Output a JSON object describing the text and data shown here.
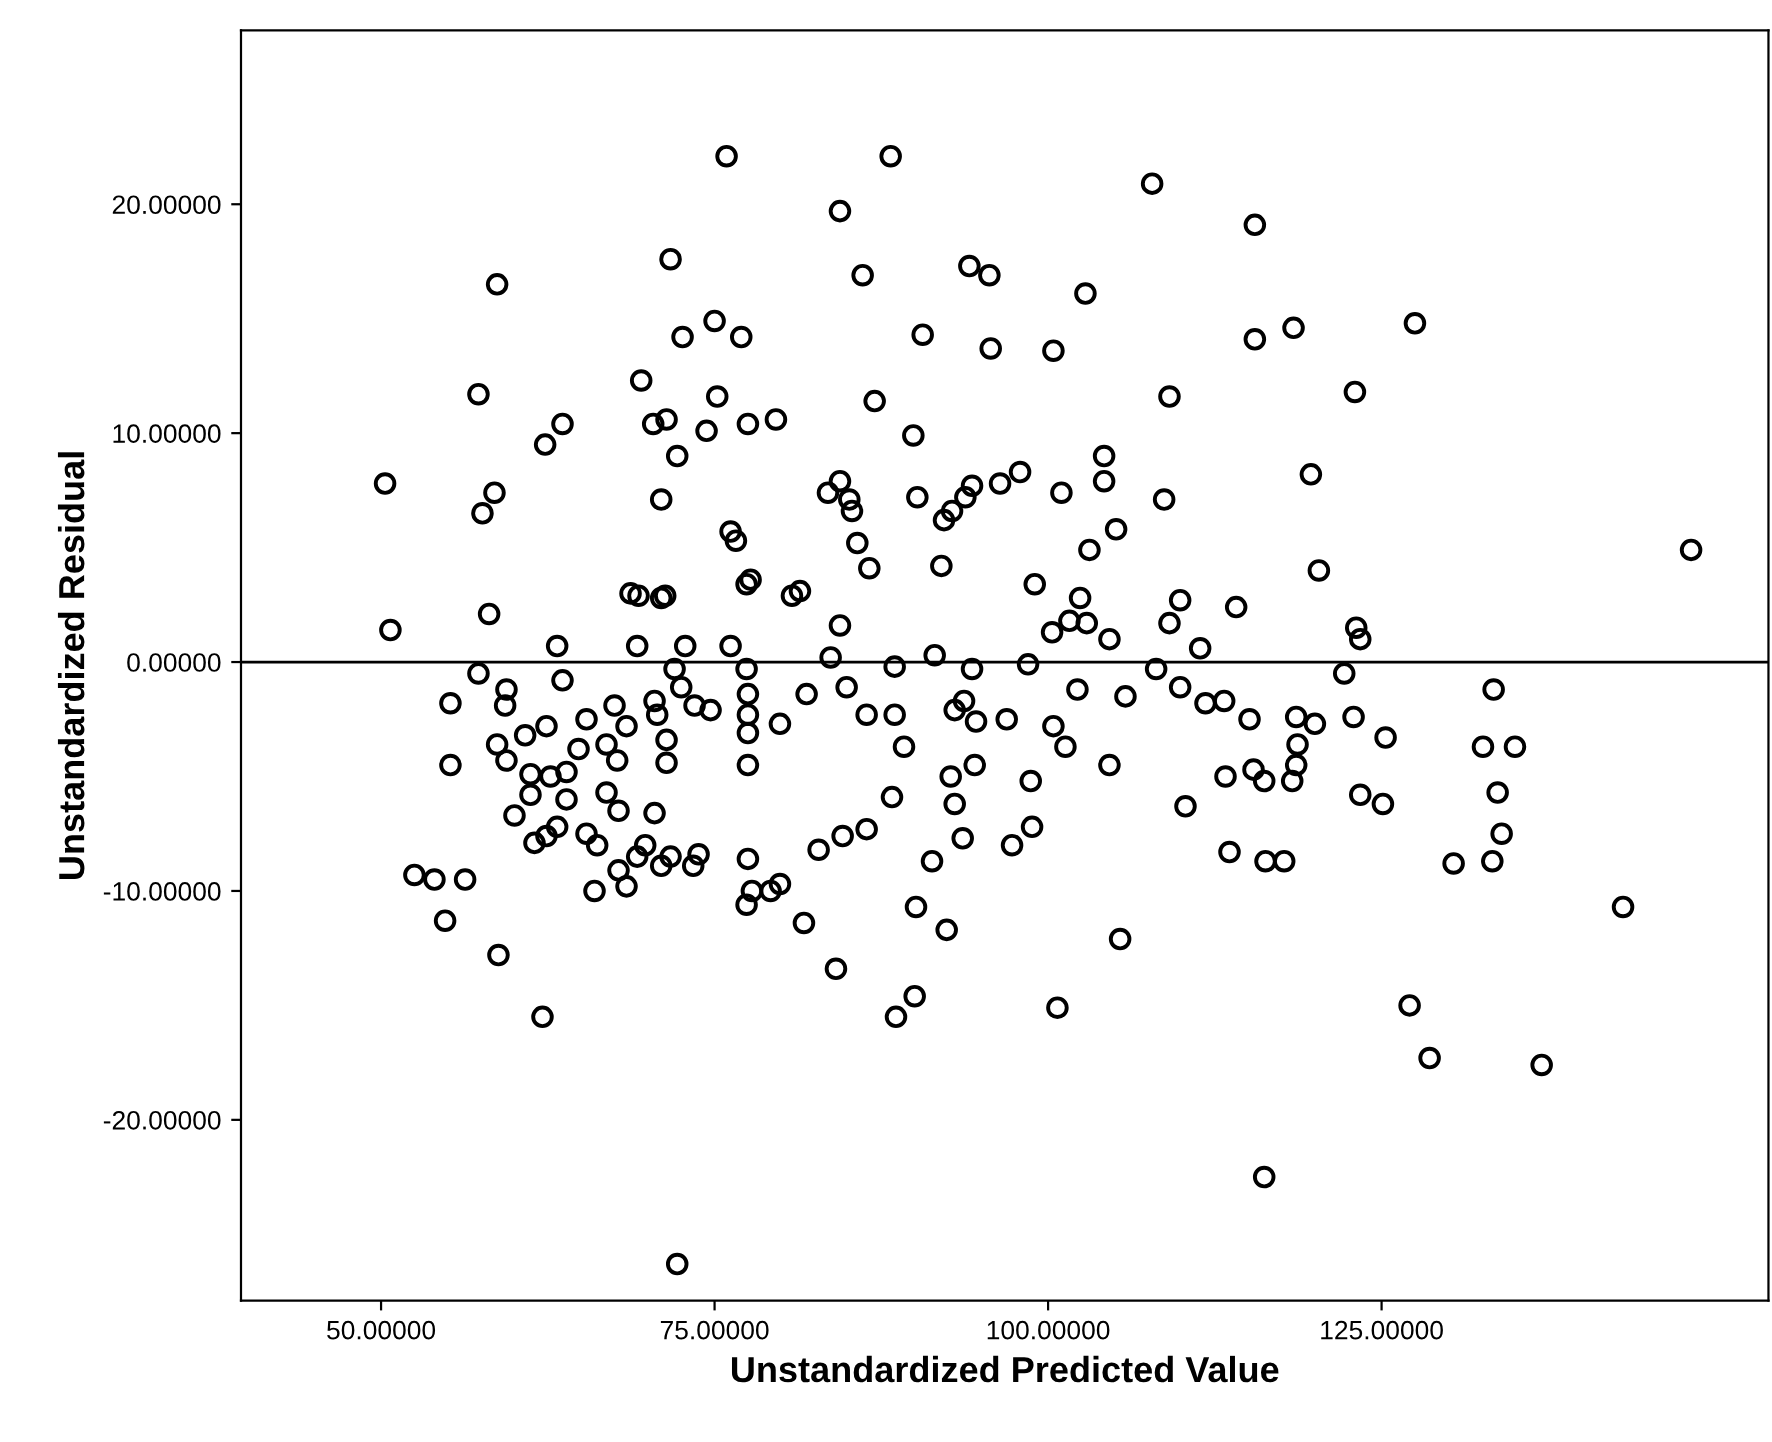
{
  "chart_data": {
    "type": "scatter",
    "xlabel": "Unstandardized Predicted Value",
    "ylabel": "Unstandardized Residual",
    "xlim": [
      39.5,
      154
    ],
    "ylim": [
      -27.9,
      27.6
    ],
    "xticks": [
      {
        "value": 50,
        "label": "50.00000"
      },
      {
        "value": 75,
        "label": "75.00000"
      },
      {
        "value": 100,
        "label": "100.00000"
      },
      {
        "value": 125,
        "label": "125.00000"
      }
    ],
    "yticks": [
      {
        "value": -20,
        "label": "-20.00000"
      },
      {
        "value": -10,
        "label": "-10.00000"
      },
      {
        "value": 0,
        "label": "0.00000"
      },
      {
        "value": 10,
        "label": "10.00000"
      },
      {
        "value": 20,
        "label": "20.00000"
      }
    ],
    "marker": "circle",
    "grid": false,
    "legend": false,
    "ref_lines": [
      {
        "axis": "y",
        "value": 0,
        "color": "#000000",
        "line_style": "solid"
      }
    ],
    "series": [
      {
        "color": "#000000",
        "x": [
          50.3,
          50.7,
          58.7,
          57.3,
          57.6,
          58.5,
          58.1,
          62.3,
          63.6,
          63.2,
          69.5,
          71.7,
          70.4,
          71.4,
          71,
          69.3,
          71,
          72.2,
          72.6,
          75,
          75.9,
          75.2,
          74.4,
          77.5,
          77,
          76.2,
          76.6,
          77.7,
          79.6,
          81.4,
          80.8,
          84.4,
          84.4,
          86.1,
          83.5,
          85.1,
          85.3,
          85.7,
          86.6,
          84.4,
          87,
          88.2,
          89.9,
          90.6,
          90.2,
          92.2,
          92.8,
          92,
          94.1,
          95.6,
          95.7,
          94.3,
          93.8,
          96.4,
          97.9,
          100.4,
          102.8,
          101,
          104.2,
          104.2,
          103.1,
          99,
          102.4,
          101.6,
          102.9,
          104.6,
          100.3,
          107.8,
          109.1,
          108.7,
          105.1,
          115.5,
          115.5,
          118.4,
          119.7,
          120.3,
          123,
          123.1,
          123.4,
          127.5,
          148.2,
          114.1,
          109.1,
          109.9,
          111.4,
          68.7,
          71.3,
          77.4,
          69.2,
          72.8,
          76.2,
          83.7,
          91.5,
          55.2,
          55.2,
          57.3,
          59.4,
          59.3,
          58.7,
          59.4,
          60.8,
          62.4,
          63.6,
          61.2,
          61.2,
          62.7,
          63.9,
          63.9,
          60,
          61.5,
          62.4,
          63.2,
          65.4,
          64.8,
          66.9,
          67.5,
          68.4,
          67.7,
          66.9,
          67.8,
          70.5,
          65.4,
          66.2,
          69.8,
          69.2,
          67.8,
          66,
          68.4,
          71,
          71.7,
          73.4,
          73.8,
          70.5,
          70.7,
          71.4,
          71.4,
          72.5,
          72,
          73.5,
          74.7,
          52.5,
          54,
          56.3,
          54.8,
          58.8,
          62.1,
          72.2,
          77.4,
          77.5,
          77.5,
          77.5,
          77.5,
          77.5,
          77.8,
          79.2,
          79.9,
          77.4,
          81.9,
          79.9,
          84.9,
          86.4,
          88.5,
          89.2,
          88.3,
          92.7,
          94.5,
          93,
          93.6,
          86.4,
          84.6,
          82.8,
          81.7,
          84.1,
          90,
          88.6,
          92.4,
          90.1,
          91.3,
          97.3,
          98.8,
          98.7,
          93,
          93.7,
          94.6,
          96.9,
          100.4,
          101.3,
          98.5,
          94.3,
          88.5,
          102.2,
          105.8,
          104.6,
          108.1,
          109.9,
          111.8,
          113.2,
          110.3,
          113.3,
          113.6,
          105.4,
          100.7,
          115.1,
          118.6,
          120,
          118.7,
          118.6,
          118.3,
          115.4,
          116.2,
          122.9,
          125.3,
          123.4,
          125.1,
          116.3,
          117.7,
          122.2,
          133.4,
          135,
          132.6,
          133.7,
          134,
          133.3,
          130.4,
          143.1,
          127.1,
          128.6,
          137,
          116.2
        ],
        "values": [
          7.8,
          1.4,
          16.5,
          11.7,
          6.5,
          7.4,
          2.1,
          9.5,
          10.4,
          0.7,
          12.3,
          17.6,
          10.4,
          10.6,
          7.1,
          2.9,
          2.8,
          9,
          14.2,
          14.9,
          22.1,
          11.6,
          10.1,
          10.4,
          14.2,
          5.7,
          5.3,
          3.6,
          10.6,
          3.1,
          2.9,
          7.9,
          19.7,
          16.9,
          7.4,
          7.1,
          6.6,
          5.2,
          4.1,
          1.6,
          11.4,
          22.1,
          9.9,
          14.3,
          7.2,
          6.2,
          6.6,
          4.2,
          17.3,
          16.9,
          13.7,
          7.7,
          7.2,
          7.8,
          8.3,
          13.6,
          16.1,
          7.4,
          9,
          7.9,
          4.9,
          3.4,
          2.8,
          1.8,
          1.7,
          1,
          1.3,
          20.9,
          11.6,
          7.1,
          5.8,
          19.1,
          14.1,
          14.6,
          8.2,
          4,
          11.8,
          1.5,
          1,
          14.8,
          4.9,
          2.4,
          1.7,
          2.7,
          0.6,
          3,
          2.9,
          3.4,
          0.7,
          0.7,
          0.7,
          0.2,
          0.3,
          -1.8,
          -4.5,
          -0.5,
          -1.2,
          -1.9,
          -3.6,
          -4.3,
          -3.2,
          -2.8,
          -0.8,
          -4.9,
          -5.8,
          -5,
          -4.8,
          -6,
          -6.7,
          -7.9,
          -7.6,
          -7.2,
          -2.5,
          -3.8,
          -3.6,
          -1.9,
          -2.8,
          -4.3,
          -5.7,
          -6.5,
          -6.6,
          -7.5,
          -8,
          -8,
          -8.5,
          -9.1,
          -10,
          -9.8,
          -8.9,
          -8.5,
          -8.9,
          -8.4,
          -1.7,
          -2.3,
          -3.4,
          -4.4,
          -1.1,
          -0.3,
          -1.9,
          -2.1,
          -9.3,
          -9.5,
          -9.5,
          -11.3,
          -12.8,
          -15.5,
          -26.3,
          -0.3,
          -1.4,
          -2.3,
          -3.1,
          -4.5,
          -8.6,
          -10,
          -10,
          -9.7,
          -10.6,
          -1.4,
          -2.7,
          -1.1,
          -2.3,
          -2.3,
          -3.7,
          -5.9,
          -5,
          -4.5,
          -6.2,
          -7.7,
          -7.3,
          -7.6,
          -8.2,
          -11.4,
          -13.4,
          -14.6,
          -15.5,
          -11.7,
          -10.7,
          -8.7,
          -8,
          -7.2,
          -5.2,
          -2.1,
          -1.7,
          -2.6,
          -2.5,
          -2.8,
          -3.7,
          -0.1,
          -0.3,
          -0.2,
          -1.2,
          -1.5,
          -4.5,
          -0.3,
          -1.1,
          -1.8,
          -1.7,
          -6.3,
          -5,
          -8.3,
          -12.1,
          -15.1,
          -2.5,
          -2.4,
          -2.7,
          -3.6,
          -4.5,
          -5.2,
          -4.7,
          -5.2,
          -2.4,
          -3.3,
          -5.8,
          -6.2,
          -8.7,
          -8.7,
          -0.5,
          -1.2,
          -3.7,
          -3.7,
          -5.7,
          -7.5,
          -8.7,
          -8.8,
          -10.7,
          -15,
          -17.3,
          -17.6,
          -22.5
        ]
      }
    ]
  }
}
